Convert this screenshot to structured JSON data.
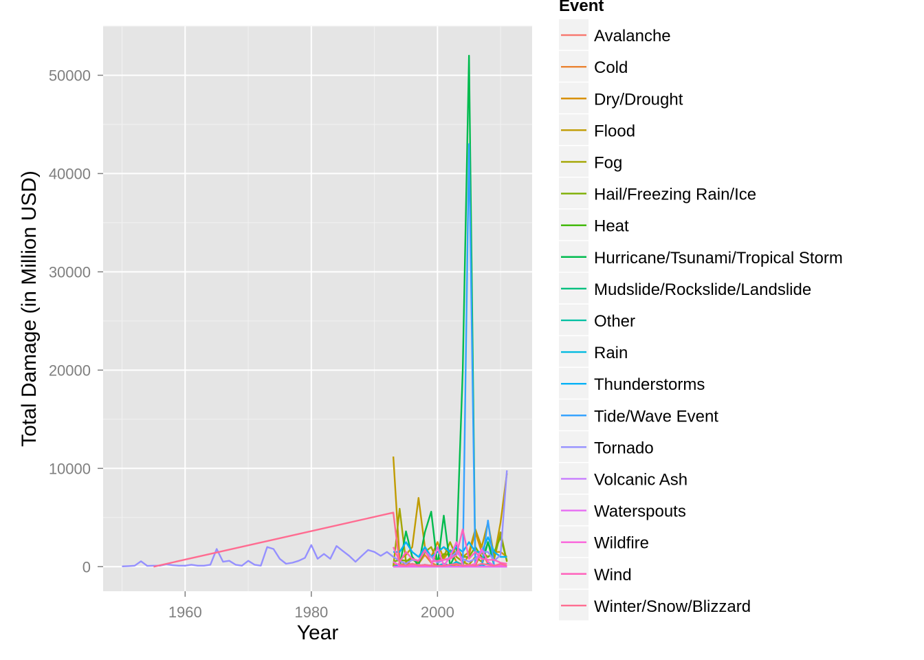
{
  "chart_data": {
    "type": "line",
    "title": "",
    "xlabel": "Year",
    "ylabel": "Total Damage (in Million USD)",
    "xlim": [
      1947,
      2015
    ],
    "ylim": [
      -2500,
      55000
    ],
    "x_ticks": [
      "1960",
      "1980",
      "2000"
    ],
    "y_ticks": [
      "0",
      "10000",
      "20000",
      "30000",
      "40000",
      "50000"
    ],
    "x_tick_values": [
      1960,
      1980,
      2000
    ],
    "y_tick_values": [
      0,
      10000,
      20000,
      30000,
      40000,
      50000
    ],
    "grid": true,
    "legend_title": "Event",
    "legend_position": "right",
    "series": [
      {
        "name": "Avalanche",
        "color": "#F8766D",
        "x": [
          1993,
          1994,
          1995,
          1996,
          1997,
          1998,
          1999,
          2000,
          2001,
          2002,
          2003,
          2004,
          2005,
          2006,
          2007,
          2008,
          2009,
          2010,
          2011
        ],
        "y": [
          0,
          0,
          0,
          0,
          0,
          0,
          0,
          0,
          0,
          0,
          0,
          0,
          0,
          0,
          0,
          0,
          0,
          0,
          0
        ]
      },
      {
        "name": "Cold",
        "color": "#EA8331",
        "x": [
          1993,
          1994,
          1995,
          1996,
          1997,
          1998,
          1999,
          2000,
          2001,
          2002,
          2003,
          2004,
          2005,
          2006,
          2007,
          2008,
          2009,
          2010,
          2011
        ],
        "y": [
          200,
          100,
          400,
          200,
          300,
          1200,
          400,
          100,
          300,
          100,
          200,
          100,
          100,
          100,
          1500,
          300,
          100,
          100,
          100
        ]
      },
      {
        "name": "Dry/Drought",
        "color": "#D89000",
        "x": [
          1993,
          1994,
          1995,
          1996,
          1997,
          1998,
          1999,
          2000,
          2001,
          2002,
          2003,
          2004,
          2005,
          2006,
          2007,
          2008,
          2009,
          2010,
          2011
        ],
        "y": [
          0,
          300,
          100,
          800,
          200,
          2000,
          1000,
          2500,
          800,
          1700,
          500,
          200,
          1200,
          3500,
          1500,
          1000,
          1500,
          1500,
          1000
        ]
      },
      {
        "name": "Flood",
        "color": "#C09B00",
        "x": [
          1993,
          1994,
          1995,
          1996,
          1997,
          1998,
          1999,
          2000,
          2001,
          2002,
          2003,
          2004,
          2005,
          2006,
          2007,
          2008,
          2009,
          2010,
          2011
        ],
        "y": [
          11200,
          700,
          1200,
          2000,
          7000,
          2000,
          1000,
          1500,
          2000,
          1200,
          2000,
          1000,
          1500,
          3800,
          2000,
          4500,
          1000,
          4500,
          9500
        ]
      },
      {
        "name": "Fog",
        "color": "#A3A500",
        "x": [
          1993,
          1994,
          1995,
          1996,
          1997,
          1998,
          1999,
          2000,
          2001,
          2002,
          2003,
          2004,
          2005,
          2006,
          2007,
          2008,
          2009,
          2010,
          2011
        ],
        "y": [
          0,
          5900,
          500,
          1000,
          300,
          1500,
          2000,
          500,
          1000,
          2500,
          1000,
          500,
          200,
          1000,
          500,
          2500,
          800,
          3500,
          500
        ]
      },
      {
        "name": "Hail/Freezing Rain/Ice",
        "color": "#7CAE00",
        "x": [
          1993,
          1994,
          1995,
          1996,
          1997,
          1998,
          1999,
          2000,
          2001,
          2002,
          2003,
          2004,
          2005,
          2006,
          2007,
          2008,
          2009,
          2010,
          2011
        ],
        "y": [
          500,
          700,
          600,
          700,
          500,
          1500,
          1000,
          600,
          1300,
          1200,
          1500,
          1000,
          1000,
          2000,
          1000,
          1000,
          1500,
          3000,
          600
        ]
      },
      {
        "name": "Heat",
        "color": "#39B600",
        "x": [
          1993,
          1994,
          1995,
          1996,
          1997,
          1998,
          1999,
          2000,
          2001,
          2002,
          2003,
          2004,
          2005,
          2006,
          2007,
          2008,
          2009,
          2010,
          2011
        ],
        "y": [
          0,
          0,
          0,
          0,
          0,
          0,
          0,
          0,
          0,
          0,
          0,
          0,
          0,
          0,
          0,
          0,
          0,
          0,
          0
        ]
      },
      {
        "name": "Hurricane/Tsunami/Tropical Storm",
        "color": "#00BB4E",
        "x": [
          1993,
          1994,
          1995,
          1996,
          1997,
          1998,
          1999,
          2000,
          2001,
          2002,
          2003,
          2004,
          2005,
          2006,
          2007,
          2008,
          2009,
          2010,
          2011
        ],
        "y": [
          0,
          0,
          3600,
          1000,
          100,
          3500,
          5600,
          100,
          5200,
          100,
          1500,
          20000,
          52000,
          100,
          100,
          2500,
          100,
          100,
          100
        ]
      },
      {
        "name": "Mudslide/Rockslide/Landslide",
        "color": "#00BF7D",
        "x": [
          1993,
          1994,
          1995,
          1996,
          1997,
          1998,
          1999,
          2000,
          2001,
          2002,
          2003,
          2004,
          2005,
          2006,
          2007,
          2008,
          2009,
          2010,
          2011
        ],
        "y": [
          0,
          0,
          0,
          0,
          0,
          0,
          0,
          0,
          0,
          0,
          0,
          0,
          0,
          0,
          0,
          0,
          0,
          0,
          0
        ]
      },
      {
        "name": "Other",
        "color": "#00C1A3",
        "x": [
          1993,
          1994,
          1995,
          1996,
          1997,
          1998,
          1999,
          2000,
          2001,
          2002,
          2003,
          2004,
          2005,
          2006,
          2007,
          2008,
          2009,
          2010,
          2011
        ],
        "y": [
          0,
          0,
          0,
          0,
          0,
          0,
          0,
          0,
          0,
          0,
          0,
          0,
          0,
          0,
          0,
          0,
          0,
          0,
          0
        ]
      },
      {
        "name": "Rain",
        "color": "#00BAE0",
        "x": [
          1993,
          1994,
          1995,
          1996,
          1997,
          1998,
          1999,
          2000,
          2001,
          2002,
          2003,
          2004,
          2005,
          2006,
          2007,
          2008,
          2009,
          2010,
          2011
        ],
        "y": [
          0,
          200,
          100,
          300,
          100,
          200,
          100,
          100,
          300,
          100,
          500,
          100,
          200,
          100,
          100,
          300,
          100,
          100,
          100
        ]
      },
      {
        "name": "Thunderstorms",
        "color": "#00B0F6",
        "x": [
          1993,
          1994,
          1995,
          1996,
          1997,
          1998,
          1999,
          2000,
          2001,
          2002,
          2003,
          2004,
          2005,
          2006,
          2007,
          2008,
          2009,
          2010,
          2011
        ],
        "y": [
          1500,
          1500,
          2500,
          1500,
          1000,
          2000,
          1000,
          1500,
          2000,
          1500,
          2000,
          1500,
          2500,
          1500,
          1500,
          3000,
          1500,
          1000,
          1000
        ]
      },
      {
        "name": "Tide/Wave Event",
        "color": "#35A2FF",
        "x": [
          1993,
          1994,
          1995,
          1996,
          1997,
          1998,
          1999,
          2000,
          2001,
          2002,
          2003,
          2004,
          2005,
          2006,
          2007,
          2008,
          2009,
          2010,
          2011
        ],
        "y": [
          0,
          0,
          0,
          0,
          0,
          0,
          0,
          0,
          0,
          0,
          0,
          0,
          43000,
          0,
          0,
          4700,
          0,
          0,
          0
        ]
      },
      {
        "name": "Tornado",
        "color": "#9590FF",
        "x": [
          1950,
          1951,
          1952,
          1953,
          1954,
          1955,
          1956,
          1957,
          1958,
          1959,
          1960,
          1961,
          1962,
          1963,
          1964,
          1965,
          1966,
          1967,
          1968,
          1969,
          1970,
          1971,
          1972,
          1973,
          1974,
          1975,
          1976,
          1977,
          1978,
          1979,
          1980,
          1981,
          1982,
          1983,
          1984,
          1985,
          1986,
          1987,
          1988,
          1989,
          1990,
          1991,
          1992,
          1993,
          1994,
          1995,
          1996,
          1997,
          1998,
          1999,
          2000,
          2001,
          2002,
          2003,
          2004,
          2005,
          2006,
          2007,
          2008,
          2009,
          2010,
          2011
        ],
        "y": [
          30,
          60,
          100,
          550,
          80,
          100,
          100,
          250,
          150,
          100,
          100,
          200,
          100,
          100,
          200,
          1800,
          500,
          600,
          200,
          100,
          600,
          200,
          100,
          2000,
          1800,
          800,
          300,
          400,
          600,
          900,
          2200,
          800,
          1300,
          800,
          2100,
          1600,
          1100,
          500,
          1100,
          1700,
          1500,
          1100,
          1500,
          1000,
          600,
          300,
          700,
          600,
          1600,
          1000,
          400,
          700,
          900,
          1500,
          800,
          500,
          800,
          1500,
          1500,
          600,
          1200,
          9800
        ]
      },
      {
        "name": "Volcanic Ash",
        "color": "#C77CFF",
        "x": [
          1993,
          1994,
          1995,
          1996,
          1997,
          1998,
          1999,
          2000,
          2001,
          2002,
          2003,
          2004,
          2005,
          2006,
          2007,
          2008,
          2009,
          2010,
          2011
        ],
        "y": [
          0,
          0,
          0,
          0,
          0,
          0,
          0,
          0,
          0,
          0,
          0,
          0,
          0,
          0,
          0,
          0,
          0,
          0,
          0
        ]
      },
      {
        "name": "Waterspouts",
        "color": "#E76BF3",
        "x": [
          1993,
          1994,
          1995,
          1996,
          1997,
          1998,
          1999,
          2000,
          2001,
          2002,
          2003,
          2004,
          2005,
          2006,
          2007,
          2008,
          2009,
          2010,
          2011
        ],
        "y": [
          0,
          0,
          0,
          0,
          0,
          0,
          0,
          0,
          0,
          0,
          0,
          0,
          0,
          0,
          0,
          0,
          0,
          0,
          0
        ]
      },
      {
        "name": "Wildfire",
        "color": "#FA62DB",
        "x": [
          1993,
          1994,
          1995,
          1996,
          1997,
          1998,
          1999,
          2000,
          2001,
          2002,
          2003,
          2004,
          2005,
          2006,
          2007,
          2008,
          2009,
          2010,
          2011
        ],
        "y": [
          500,
          100,
          100,
          100,
          200,
          100,
          100,
          2000,
          100,
          1000,
          2500,
          100,
          100,
          300,
          1800,
          500,
          100,
          100,
          100
        ]
      },
      {
        "name": "Wind",
        "color": "#FF62BC",
        "x": [
          1993,
          1994,
          1995,
          1996,
          1997,
          1998,
          1999,
          2000,
          2001,
          2002,
          2003,
          2004,
          2005,
          2006,
          2007,
          2008,
          2009,
          2010,
          2011
        ],
        "y": [
          2000,
          500,
          1500,
          800,
          600,
          1700,
          500,
          600,
          700,
          800,
          1200,
          3800,
          800,
          1500,
          800,
          700,
          700,
          400,
          300
        ]
      },
      {
        "name": "Winter/Snow/Blizzard",
        "color": "#FF6C91",
        "x": [
          1955,
          1993,
          1994,
          1995,
          1996,
          1997,
          1998,
          1999,
          2000,
          2001,
          2002,
          2003,
          2004,
          2005,
          2006,
          2007,
          2008,
          2009,
          2010,
          2011
        ],
        "y": [
          0,
          5500,
          200,
          100,
          300,
          100,
          200,
          100,
          100,
          100,
          200,
          300,
          100,
          200,
          100,
          300,
          200,
          100,
          300,
          100
        ]
      }
    ]
  }
}
